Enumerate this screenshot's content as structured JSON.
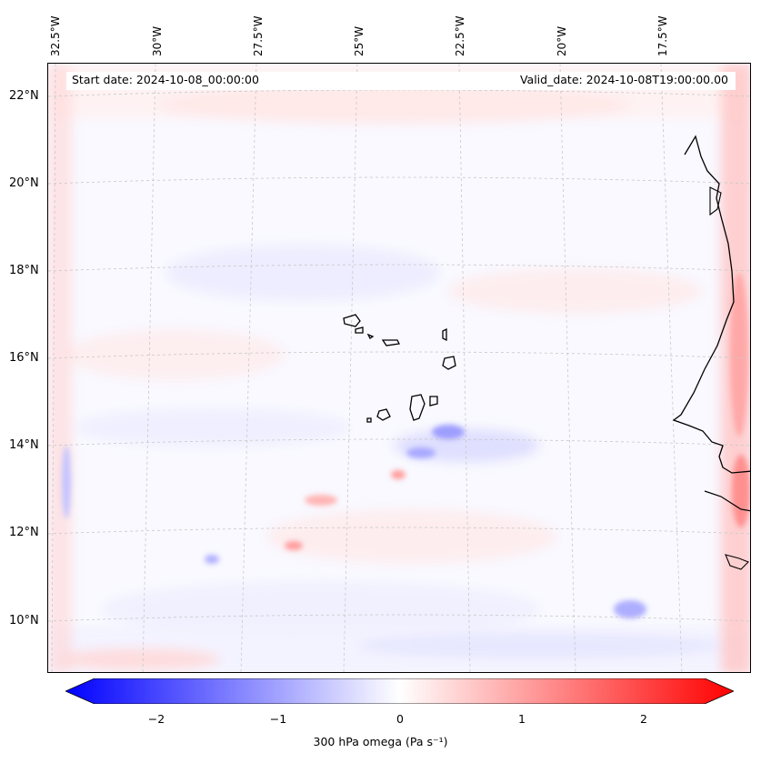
{
  "map": {
    "info": {
      "start_date": "Start date: 2024-10-08_00:00:00",
      "valid_date": "Valid_date: 2024-10-08T19:00:00.00"
    },
    "lon_labels": [
      "32.5°W",
      "30°W",
      "27.5°W",
      "25°W",
      "22.5°W",
      "20°W",
      "17.5°W"
    ],
    "lat_labels": [
      "22°N",
      "20°N",
      "18°N",
      "16°N",
      "14°N",
      "12°N",
      "10°N"
    ],
    "field_variable": "300 hPa omega"
  },
  "colorbar": {
    "label": "300 hPa omega (Pa s⁻¹)",
    "ticks": [
      "−2",
      "−1",
      "0",
      "1",
      "2"
    ],
    "range": [
      -2.6,
      2.6
    ],
    "low_color": "#0000ff",
    "mid_color": "#ffffff",
    "high_color": "#ff0000"
  }
}
